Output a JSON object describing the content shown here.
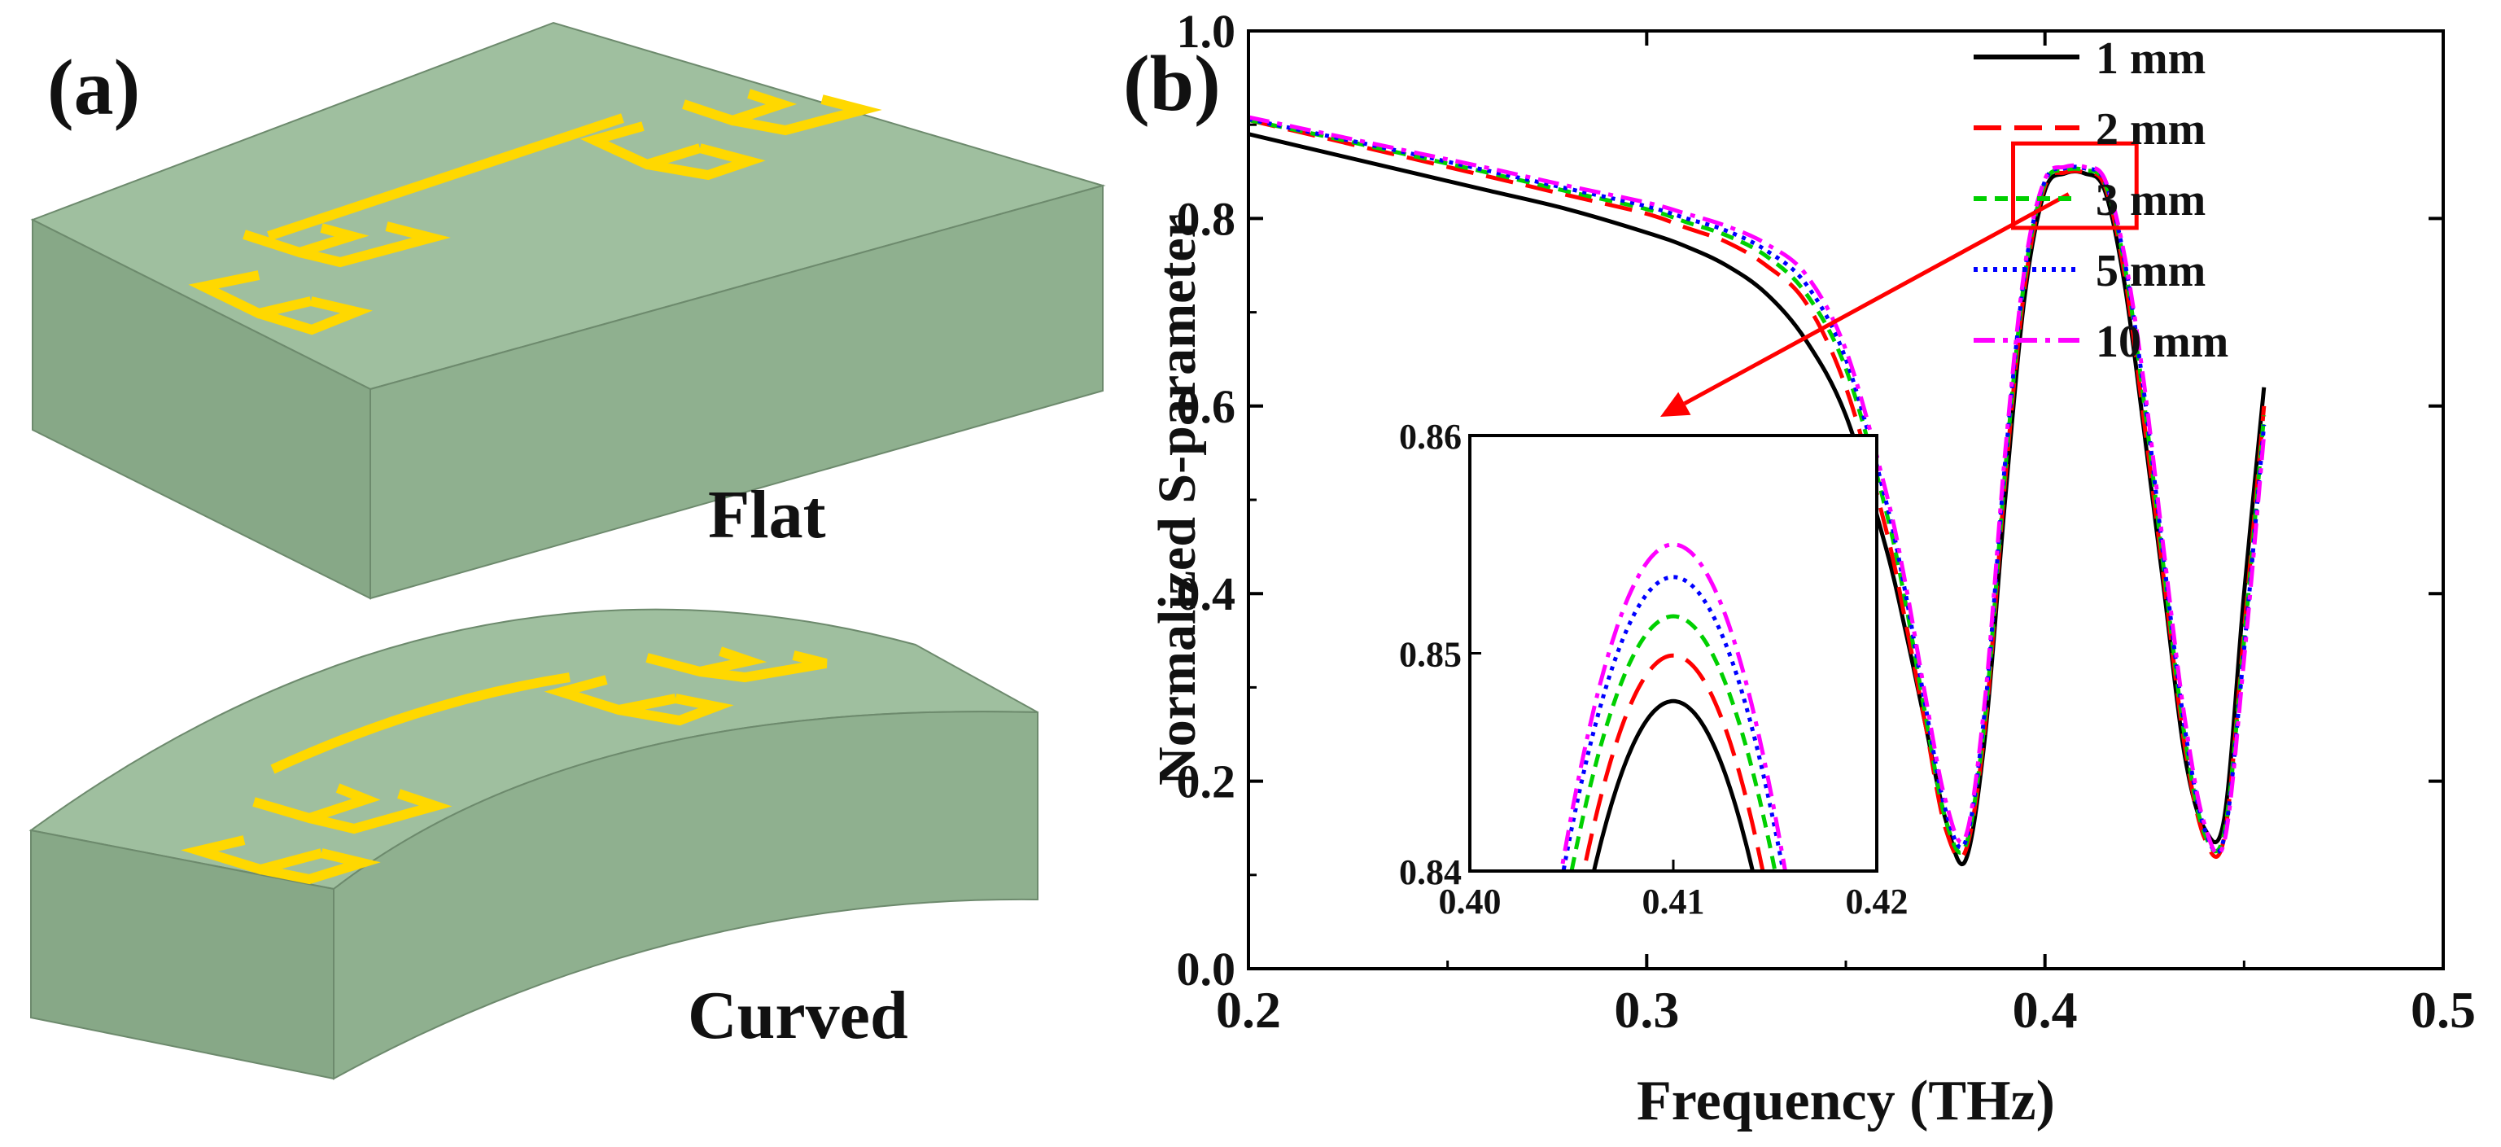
{
  "panel_a": {
    "label": "(a)",
    "flat_label": "Flat",
    "curved_label": "Curved",
    "substrate_color": "#8fb08f",
    "metal_color": "#ffd800"
  },
  "chart_data": {
    "type": "line",
    "panel_label": "(b)",
    "xlabel": "Frequency (THz)",
    "ylabel": "Normalized S-parameter",
    "xlim": [
      0.2,
      0.5
    ],
    "ylim": [
      0.0,
      1.0
    ],
    "xticks": [
      "0.2",
      "0.3",
      "0.4",
      "0.5"
    ],
    "yticks": [
      "0.0",
      "0.2",
      "0.4",
      "0.6",
      "0.8",
      "1.0"
    ],
    "legend_position": "top-right",
    "series": [
      {
        "name": "1 mm",
        "color": "#000000",
        "dash": "solid",
        "x": [
          0.2,
          0.22,
          0.24,
          0.26,
          0.28,
          0.3,
          0.31,
          0.32,
          0.33,
          0.34,
          0.35,
          0.36,
          0.365,
          0.37,
          0.375,
          0.38,
          0.385,
          0.39,
          0.395,
          0.4,
          0.405,
          0.41,
          0.415,
          0.42,
          0.425,
          0.43,
          0.435,
          0.44,
          0.445,
          0.45,
          0.455
        ],
        "y": [
          0.89,
          0.87,
          0.85,
          0.83,
          0.81,
          0.785,
          0.77,
          0.75,
          0.72,
          0.67,
          0.59,
          0.45,
          0.36,
          0.26,
          0.16,
          0.115,
          0.25,
          0.5,
          0.72,
          0.83,
          0.848,
          0.848,
          0.83,
          0.73,
          0.57,
          0.4,
          0.23,
          0.15,
          0.16,
          0.4,
          0.62
        ]
      },
      {
        "name": "2 mm",
        "color": "#ff0000",
        "dash": "long-dash",
        "x": [
          0.2,
          0.22,
          0.24,
          0.26,
          0.28,
          0.3,
          0.31,
          0.32,
          0.33,
          0.34,
          0.35,
          0.36,
          0.365,
          0.37,
          0.375,
          0.38,
          0.385,
          0.39,
          0.395,
          0.4,
          0.405,
          0.41,
          0.415,
          0.42,
          0.425,
          0.43,
          0.435,
          0.44,
          0.445,
          0.45,
          0.455
        ],
        "y": [
          0.905,
          0.885,
          0.865,
          0.845,
          0.825,
          0.805,
          0.79,
          0.775,
          0.75,
          0.71,
          0.62,
          0.47,
          0.37,
          0.26,
          0.15,
          0.125,
          0.26,
          0.52,
          0.73,
          0.835,
          0.849,
          0.849,
          0.835,
          0.74,
          0.58,
          0.41,
          0.24,
          0.14,
          0.14,
          0.36,
          0.6
        ]
      },
      {
        "name": "3 mm",
        "color": "#00d000",
        "dash": "short-dash",
        "x": [
          0.2,
          0.22,
          0.24,
          0.26,
          0.28,
          0.3,
          0.31,
          0.32,
          0.33,
          0.34,
          0.35,
          0.36,
          0.365,
          0.37,
          0.375,
          0.38,
          0.385,
          0.39,
          0.395,
          0.4,
          0.405,
          0.41,
          0.415,
          0.42,
          0.425,
          0.43,
          0.435,
          0.44,
          0.445,
          0.45,
          0.455
        ],
        "y": [
          0.905,
          0.887,
          0.868,
          0.849,
          0.829,
          0.81,
          0.796,
          0.782,
          0.76,
          0.72,
          0.64,
          0.49,
          0.39,
          0.27,
          0.16,
          0.13,
          0.27,
          0.53,
          0.74,
          0.838,
          0.8515,
          0.8515,
          0.838,
          0.75,
          0.6,
          0.42,
          0.25,
          0.145,
          0.145,
          0.35,
          0.59
        ]
      },
      {
        "name": "5 mm",
        "color": "#0000ff",
        "dash": "dotted",
        "x": [
          0.2,
          0.22,
          0.24,
          0.26,
          0.28,
          0.3,
          0.31,
          0.32,
          0.33,
          0.34,
          0.35,
          0.36,
          0.365,
          0.37,
          0.375,
          0.38,
          0.385,
          0.39,
          0.395,
          0.4,
          0.405,
          0.41,
          0.415,
          0.42,
          0.425,
          0.43,
          0.435,
          0.44,
          0.445,
          0.45,
          0.455
        ],
        "y": [
          0.906,
          0.888,
          0.87,
          0.851,
          0.832,
          0.813,
          0.8,
          0.787,
          0.766,
          0.73,
          0.65,
          0.5,
          0.4,
          0.28,
          0.17,
          0.135,
          0.28,
          0.54,
          0.745,
          0.84,
          0.8535,
          0.8535,
          0.84,
          0.755,
          0.61,
          0.43,
          0.26,
          0.15,
          0.14,
          0.34,
          0.58
        ]
      },
      {
        "name": "10 mm",
        "color": "#ff00ff",
        "dash": "dash-dot",
        "x": [
          0.2,
          0.22,
          0.24,
          0.26,
          0.28,
          0.3,
          0.31,
          0.32,
          0.33,
          0.34,
          0.35,
          0.36,
          0.365,
          0.37,
          0.375,
          0.38,
          0.385,
          0.39,
          0.395,
          0.4,
          0.405,
          0.41,
          0.415,
          0.42,
          0.425,
          0.43,
          0.435,
          0.44,
          0.445,
          0.45,
          0.455
        ],
        "y": [
          0.908,
          0.89,
          0.872,
          0.854,
          0.835,
          0.817,
          0.805,
          0.792,
          0.773,
          0.74,
          0.66,
          0.51,
          0.41,
          0.29,
          0.18,
          0.14,
          0.29,
          0.55,
          0.75,
          0.842,
          0.855,
          0.855,
          0.842,
          0.76,
          0.62,
          0.44,
          0.27,
          0.155,
          0.135,
          0.33,
          0.57
        ]
      }
    ],
    "zoom_box": {
      "xlim": [
        0.392,
        0.423
      ],
      "ylim": [
        0.79,
        0.88
      ]
    },
    "inset": {
      "xlim": [
        0.4,
        0.42
      ],
      "ylim": [
        0.84,
        0.86
      ],
      "xticks": [
        "0.40",
        "0.41",
        "0.42"
      ],
      "yticks": [
        "0.84",
        "0.85",
        "0.86"
      ],
      "peaks": [
        {
          "name": "1 mm",
          "x0": 0.41,
          "peak": 0.8478,
          "halfwidth": 0.0039
        },
        {
          "name": "2 mm",
          "x0": 0.41,
          "peak": 0.8499,
          "halfwidth": 0.0044
        },
        {
          "name": "3 mm",
          "x0": 0.41,
          "peak": 0.8517,
          "halfwidth": 0.005
        },
        {
          "name": "5 mm",
          "x0": 0.41,
          "peak": 0.8535,
          "halfwidth": 0.0054
        },
        {
          "name": "10 mm",
          "x0": 0.41,
          "peak": 0.855,
          "halfwidth": 0.0055
        }
      ]
    }
  }
}
